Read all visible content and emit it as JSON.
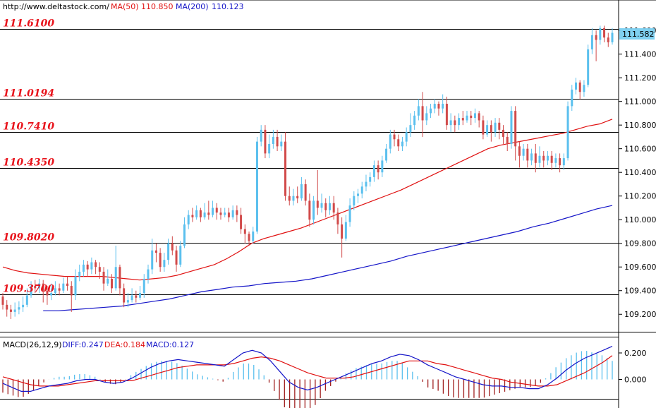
{
  "chart_data": [
    {
      "type": "candlestick",
      "header": {
        "source": "http://www.deltastock.com/",
        "ma50_label": "MA(50)",
        "ma50_value": "110.850",
        "ma200_label": "MA(200)",
        "ma200_value": "110.123"
      },
      "ylim": [
        109.1,
        111.75
      ],
      "yticks": [
        "111.600",
        "111.400",
        "111.200",
        "111.000",
        "110.800",
        "110.600",
        "110.400",
        "110.200",
        "110.000",
        "109.800",
        "109.600",
        "109.400",
        "109.200"
      ],
      "last_price": "111.582",
      "levels": [
        {
          "label": "111.6100",
          "value": 111.61
        },
        {
          "label": "111.0194",
          "value": 111.0194
        },
        {
          "label": "110.7410",
          "value": 110.741
        },
        {
          "label": "110.4350",
          "value": 110.435
        },
        {
          "label": "109.8020",
          "value": 109.802
        },
        {
          "label": "109.3700",
          "value": 109.37
        }
      ],
      "colors": {
        "up": "#5bc0ee",
        "down": "#d14a4a",
        "ma50": "#e01010",
        "ma200": "#1414c8",
        "level": "#000000"
      },
      "grid": false,
      "candles": [
        [
          109.35,
          109.28,
          109.38,
          109.24
        ],
        [
          109.28,
          109.24,
          109.32,
          109.18
        ],
        [
          109.24,
          109.22,
          109.28,
          109.16
        ],
        [
          109.22,
          109.24,
          109.3,
          109.18
        ],
        [
          109.24,
          109.26,
          109.31,
          109.2
        ],
        [
          109.26,
          109.28,
          109.35,
          109.22
        ],
        [
          109.28,
          109.36,
          109.42,
          109.26
        ],
        [
          109.36,
          109.44,
          109.48,
          109.34
        ],
        [
          109.44,
          109.42,
          109.49,
          109.38
        ],
        [
          109.42,
          109.46,
          109.5,
          109.38
        ],
        [
          109.46,
          109.4,
          109.49,
          109.3
        ],
        [
          109.4,
          109.36,
          109.44,
          109.28
        ],
        [
          109.36,
          109.38,
          109.46,
          109.32
        ],
        [
          109.38,
          109.42,
          109.48,
          109.36
        ],
        [
          109.42,
          109.4,
          109.46,
          109.36
        ],
        [
          109.4,
          109.46,
          109.51,
          109.38
        ],
        [
          109.46,
          109.44,
          109.52,
          109.4
        ],
        [
          109.44,
          109.36,
          109.48,
          109.22
        ],
        [
          109.36,
          109.52,
          109.58,
          109.32
        ],
        [
          109.52,
          109.56,
          109.62,
          109.48
        ],
        [
          109.56,
          109.62,
          109.66,
          109.52
        ],
        [
          109.62,
          109.58,
          109.65,
          109.52
        ],
        [
          109.58,
          109.64,
          109.68,
          109.54
        ],
        [
          109.64,
          109.6,
          109.66,
          109.54
        ],
        [
          109.6,
          109.56,
          109.64,
          109.5
        ],
        [
          109.56,
          109.46,
          109.6,
          109.4
        ],
        [
          109.46,
          109.5,
          109.58,
          109.44
        ],
        [
          109.5,
          109.42,
          109.54,
          109.38
        ],
        [
          109.42,
          109.6,
          109.78,
          109.4
        ],
        [
          109.6,
          109.42,
          109.62,
          109.36
        ],
        [
          109.42,
          109.3,
          109.46,
          109.26
        ],
        [
          109.3,
          109.32,
          109.38,
          109.26
        ],
        [
          109.32,
          109.36,
          109.42,
          109.3
        ],
        [
          109.36,
          109.34,
          109.4,
          109.3
        ],
        [
          109.34,
          109.38,
          109.44,
          109.32
        ],
        [
          109.38,
          109.5,
          109.54,
          109.34
        ],
        [
          109.5,
          109.58,
          109.62,
          109.46
        ],
        [
          109.58,
          109.74,
          109.84,
          109.54
        ],
        [
          109.74,
          109.72,
          109.8,
          109.64
        ],
        [
          109.72,
          109.6,
          109.76,
          109.56
        ],
        [
          109.6,
          109.66,
          109.72,
          109.56
        ],
        [
          109.66,
          109.8,
          109.84,
          109.62
        ],
        [
          109.8,
          109.74,
          109.86,
          109.7
        ],
        [
          109.74,
          109.62,
          109.78,
          109.56
        ],
        [
          109.62,
          109.78,
          109.82,
          109.6
        ],
        [
          109.78,
          109.96,
          110.02,
          109.76
        ],
        [
          109.96,
          110.04,
          110.08,
          109.92
        ],
        [
          110.04,
          110.02,
          110.1,
          109.98
        ],
        [
          110.02,
          110.08,
          110.12,
          110.0
        ],
        [
          110.08,
          110.02,
          110.1,
          109.98
        ],
        [
          110.02,
          110.06,
          110.14,
          110.0
        ],
        [
          110.06,
          110.04,
          110.16,
          110.0
        ],
        [
          110.04,
          110.1,
          110.16,
          110.02
        ],
        [
          110.1,
          110.06,
          110.14,
          110.0
        ],
        [
          110.06,
          110.04,
          110.1,
          110.0
        ],
        [
          110.04,
          110.06,
          110.1,
          110.02
        ],
        [
          110.06,
          110.02,
          110.1,
          109.98
        ],
        [
          110.02,
          110.08,
          110.12,
          110.0
        ],
        [
          110.08,
          110.04,
          110.12,
          109.98
        ],
        [
          110.04,
          109.92,
          110.1,
          109.88
        ],
        [
          109.92,
          109.88,
          109.96,
          109.8
        ],
        [
          109.88,
          109.82,
          109.9,
          109.78
        ],
        [
          109.82,
          109.9,
          109.94,
          109.8
        ],
        [
          109.9,
          110.66,
          110.7,
          109.88
        ],
        [
          110.66,
          110.76,
          110.8,
          110.62
        ],
        [
          110.76,
          110.56,
          110.8,
          110.52
        ],
        [
          110.56,
          110.64,
          110.72,
          110.52
        ],
        [
          110.64,
          110.7,
          110.76,
          110.6
        ],
        [
          110.7,
          110.62,
          110.76,
          110.58
        ],
        [
          110.62,
          110.66,
          110.72,
          110.58
        ],
        [
          110.66,
          110.2,
          110.74,
          110.16
        ],
        [
          110.2,
          110.16,
          110.28,
          110.12
        ],
        [
          110.16,
          110.2,
          110.26,
          110.12
        ],
        [
          110.2,
          110.18,
          110.28,
          110.14
        ],
        [
          110.18,
          110.3,
          110.36,
          110.16
        ],
        [
          110.3,
          110.16,
          110.34,
          110.12
        ],
        [
          110.16,
          110.0,
          110.22,
          109.94
        ],
        [
          110.0,
          110.16,
          110.2,
          109.96
        ],
        [
          110.16,
          110.1,
          110.42,
          110.04
        ],
        [
          110.1,
          110.14,
          110.22,
          110.06
        ],
        [
          110.14,
          110.08,
          110.18,
          110.02
        ],
        [
          110.08,
          110.14,
          110.2,
          110.04
        ],
        [
          110.14,
          110.06,
          110.2,
          110.0
        ],
        [
          110.06,
          109.96,
          110.1,
          109.88
        ],
        [
          109.96,
          109.84,
          110.02,
          109.68
        ],
        [
          109.84,
          109.98,
          110.04,
          109.82
        ],
        [
          109.98,
          110.12,
          110.18,
          109.94
        ],
        [
          110.12,
          110.2,
          110.24,
          110.08
        ],
        [
          110.2,
          110.22,
          110.26,
          110.14
        ],
        [
          110.22,
          110.28,
          110.32,
          110.18
        ],
        [
          110.28,
          110.32,
          110.38,
          110.24
        ],
        [
          110.32,
          110.36,
          110.4,
          110.28
        ],
        [
          110.36,
          110.46,
          110.5,
          110.32
        ],
        [
          110.46,
          110.4,
          110.5,
          110.34
        ],
        [
          110.4,
          110.5,
          110.54,
          110.36
        ],
        [
          110.5,
          110.6,
          110.64,
          110.48
        ],
        [
          110.6,
          110.72,
          110.76,
          110.56
        ],
        [
          110.72,
          110.68,
          110.76,
          110.62
        ],
        [
          110.68,
          110.62,
          110.72,
          110.58
        ],
        [
          110.62,
          110.66,
          110.7,
          110.58
        ],
        [
          110.66,
          110.74,
          110.78,
          110.62
        ],
        [
          110.74,
          110.8,
          110.9,
          110.7
        ],
        [
          110.8,
          110.88,
          110.92,
          110.76
        ],
        [
          110.88,
          110.96,
          111.02,
          110.84
        ],
        [
          110.96,
          110.84,
          111.08,
          110.7
        ],
        [
          110.84,
          110.9,
          110.96,
          110.8
        ],
        [
          110.9,
          110.94,
          110.98,
          110.86
        ],
        [
          110.94,
          110.98,
          111.02,
          110.9
        ],
        [
          110.98,
          110.94,
          111.0,
          110.88
        ],
        [
          110.94,
          110.98,
          111.06,
          110.9
        ],
        [
          110.98,
          110.8,
          111.04,
          110.76
        ],
        [
          110.8,
          110.84,
          110.9,
          110.74
        ],
        [
          110.84,
          110.8,
          110.88,
          110.74
        ],
        [
          110.8,
          110.86,
          110.9,
          110.76
        ],
        [
          110.86,
          110.84,
          110.92,
          110.8
        ],
        [
          110.84,
          110.88,
          110.92,
          110.82
        ],
        [
          110.88,
          110.86,
          110.92,
          110.8
        ],
        [
          110.86,
          110.9,
          110.94,
          110.82
        ],
        [
          110.9,
          110.84,
          110.92,
          110.78
        ],
        [
          110.84,
          110.72,
          110.88,
          110.68
        ],
        [
          110.72,
          110.8,
          110.84,
          110.7
        ],
        [
          110.8,
          110.74,
          110.84,
          110.66
        ],
        [
          110.74,
          110.82,
          110.86,
          110.7
        ],
        [
          110.82,
          110.76,
          110.86,
          110.68
        ],
        [
          110.76,
          110.7,
          110.8,
          110.64
        ],
        [
          110.7,
          110.64,
          110.74,
          110.58
        ],
        [
          110.64,
          110.92,
          110.96,
          110.6
        ],
        [
          110.92,
          110.62,
          110.96,
          110.5
        ],
        [
          110.62,
          110.54,
          110.66,
          110.44
        ],
        [
          110.54,
          110.6,
          110.64,
          110.5
        ],
        [
          110.6,
          110.5,
          110.64,
          110.44
        ],
        [
          110.5,
          110.56,
          110.6,
          110.46
        ],
        [
          110.56,
          110.48,
          110.64,
          110.4
        ],
        [
          110.48,
          110.54,
          110.62,
          110.44
        ],
        [
          110.54,
          110.5,
          110.58,
          110.44
        ],
        [
          110.5,
          110.54,
          110.58,
          110.46
        ],
        [
          110.54,
          110.48,
          110.58,
          110.42
        ],
        [
          110.48,
          110.52,
          110.56,
          110.44
        ],
        [
          110.52,
          110.46,
          110.56,
          110.4
        ],
        [
          110.46,
          110.52,
          110.56,
          110.42
        ],
        [
          110.52,
          110.96,
          111.0,
          110.5
        ],
        [
          110.96,
          111.1,
          111.14,
          110.92
        ],
        [
          111.1,
          111.16,
          111.2,
          111.06
        ],
        [
          111.16,
          111.08,
          111.18,
          111.02
        ],
        [
          111.08,
          111.14,
          111.18,
          111.04
        ],
        [
          111.14,
          111.44,
          111.48,
          111.12
        ],
        [
          111.44,
          111.56,
          111.62,
          111.4
        ],
        [
          111.56,
          111.52,
          111.6,
          111.34
        ],
        [
          111.52,
          111.62,
          111.64,
          111.48
        ],
        [
          111.62,
          111.54,
          111.64,
          111.5
        ],
        [
          111.54,
          111.5,
          111.58,
          111.46
        ],
        [
          111.5,
          111.58,
          111.62,
          111.48
        ]
      ],
      "ma50": [
        109.6,
        109.57,
        109.55,
        109.54,
        109.53,
        109.52,
        109.52,
        109.52,
        109.52,
        109.51,
        109.5,
        109.49,
        109.5,
        109.51,
        109.53,
        109.56,
        109.59,
        109.62,
        109.67,
        109.73,
        109.8,
        109.84,
        109.87,
        109.9,
        109.93,
        109.97,
        110.01,
        110.05,
        110.09,
        110.13,
        110.17,
        110.21,
        110.25,
        110.3,
        110.35,
        110.4,
        110.45,
        110.5,
        110.55,
        110.6,
        110.63,
        110.65,
        110.67,
        110.69,
        110.71,
        110.73,
        110.76,
        110.79,
        110.81,
        110.85
      ],
      "ma200": [
        109.23,
        109.23,
        109.24,
        109.25,
        109.26,
        109.27,
        109.29,
        109.31,
        109.33,
        109.36,
        109.39,
        109.41,
        109.43,
        109.44,
        109.46,
        109.47,
        109.48,
        109.5,
        109.53,
        109.56,
        109.59,
        109.62,
        109.65,
        109.69,
        109.72,
        109.75,
        109.78,
        109.81,
        109.84,
        109.87,
        109.9,
        109.94,
        109.97,
        110.01,
        110.05,
        110.09,
        110.12
      ],
      "ma200_start": 10
    },
    {
      "type": "macd",
      "header": {
        "name": "MACD(26,12,9)",
        "diff_label": "DIFF:0.247",
        "dea_label": "DEA:0.184",
        "macd_label": "MACD:0.127"
      },
      "ylim": [
        -0.12,
        0.28
      ],
      "yticks": [
        "0.200",
        "0.000"
      ],
      "colors": {
        "diff": "#1414c8",
        "dea": "#e01010",
        "pos": "#5bc0ee",
        "neg": "#a02020"
      },
      "diff": [
        -0.03,
        -0.06,
        -0.09,
        -0.09,
        -0.07,
        -0.05,
        -0.04,
        -0.03,
        -0.01,
        0.0,
        0.0,
        -0.02,
        -0.03,
        -0.02,
        0.01,
        0.05,
        0.09,
        0.12,
        0.14,
        0.15,
        0.14,
        0.13,
        0.12,
        0.11,
        0.1,
        0.15,
        0.2,
        0.22,
        0.2,
        0.14,
        0.06,
        -0.02,
        -0.06,
        -0.08,
        -0.06,
        -0.03,
        0.0,
        0.03,
        0.06,
        0.09,
        0.12,
        0.14,
        0.17,
        0.19,
        0.18,
        0.15,
        0.11,
        0.08,
        0.05,
        0.02,
        0.0,
        -0.02,
        -0.04,
        -0.05,
        -0.05,
        -0.06,
        -0.06,
        -0.07,
        -0.07,
        -0.04,
        0.01,
        0.07,
        0.12,
        0.16,
        0.19,
        0.22,
        0.25
      ],
      "dea": [
        0.02,
        0.0,
        -0.02,
        -0.04,
        -0.05,
        -0.05,
        -0.05,
        -0.04,
        -0.03,
        -0.02,
        -0.01,
        -0.01,
        -0.01,
        -0.01,
        -0.01,
        0.01,
        0.03,
        0.05,
        0.07,
        0.09,
        0.1,
        0.11,
        0.11,
        0.11,
        0.11,
        0.12,
        0.14,
        0.16,
        0.17,
        0.16,
        0.14,
        0.11,
        0.08,
        0.05,
        0.03,
        0.01,
        0.01,
        0.01,
        0.02,
        0.04,
        0.06,
        0.08,
        0.1,
        0.12,
        0.14,
        0.14,
        0.14,
        0.12,
        0.11,
        0.09,
        0.07,
        0.05,
        0.03,
        0.01,
        0.0,
        -0.02,
        -0.03,
        -0.04,
        -0.05,
        -0.05,
        -0.04,
        -0.01,
        0.02,
        0.05,
        0.09,
        0.13,
        0.18
      ]
    }
  ]
}
